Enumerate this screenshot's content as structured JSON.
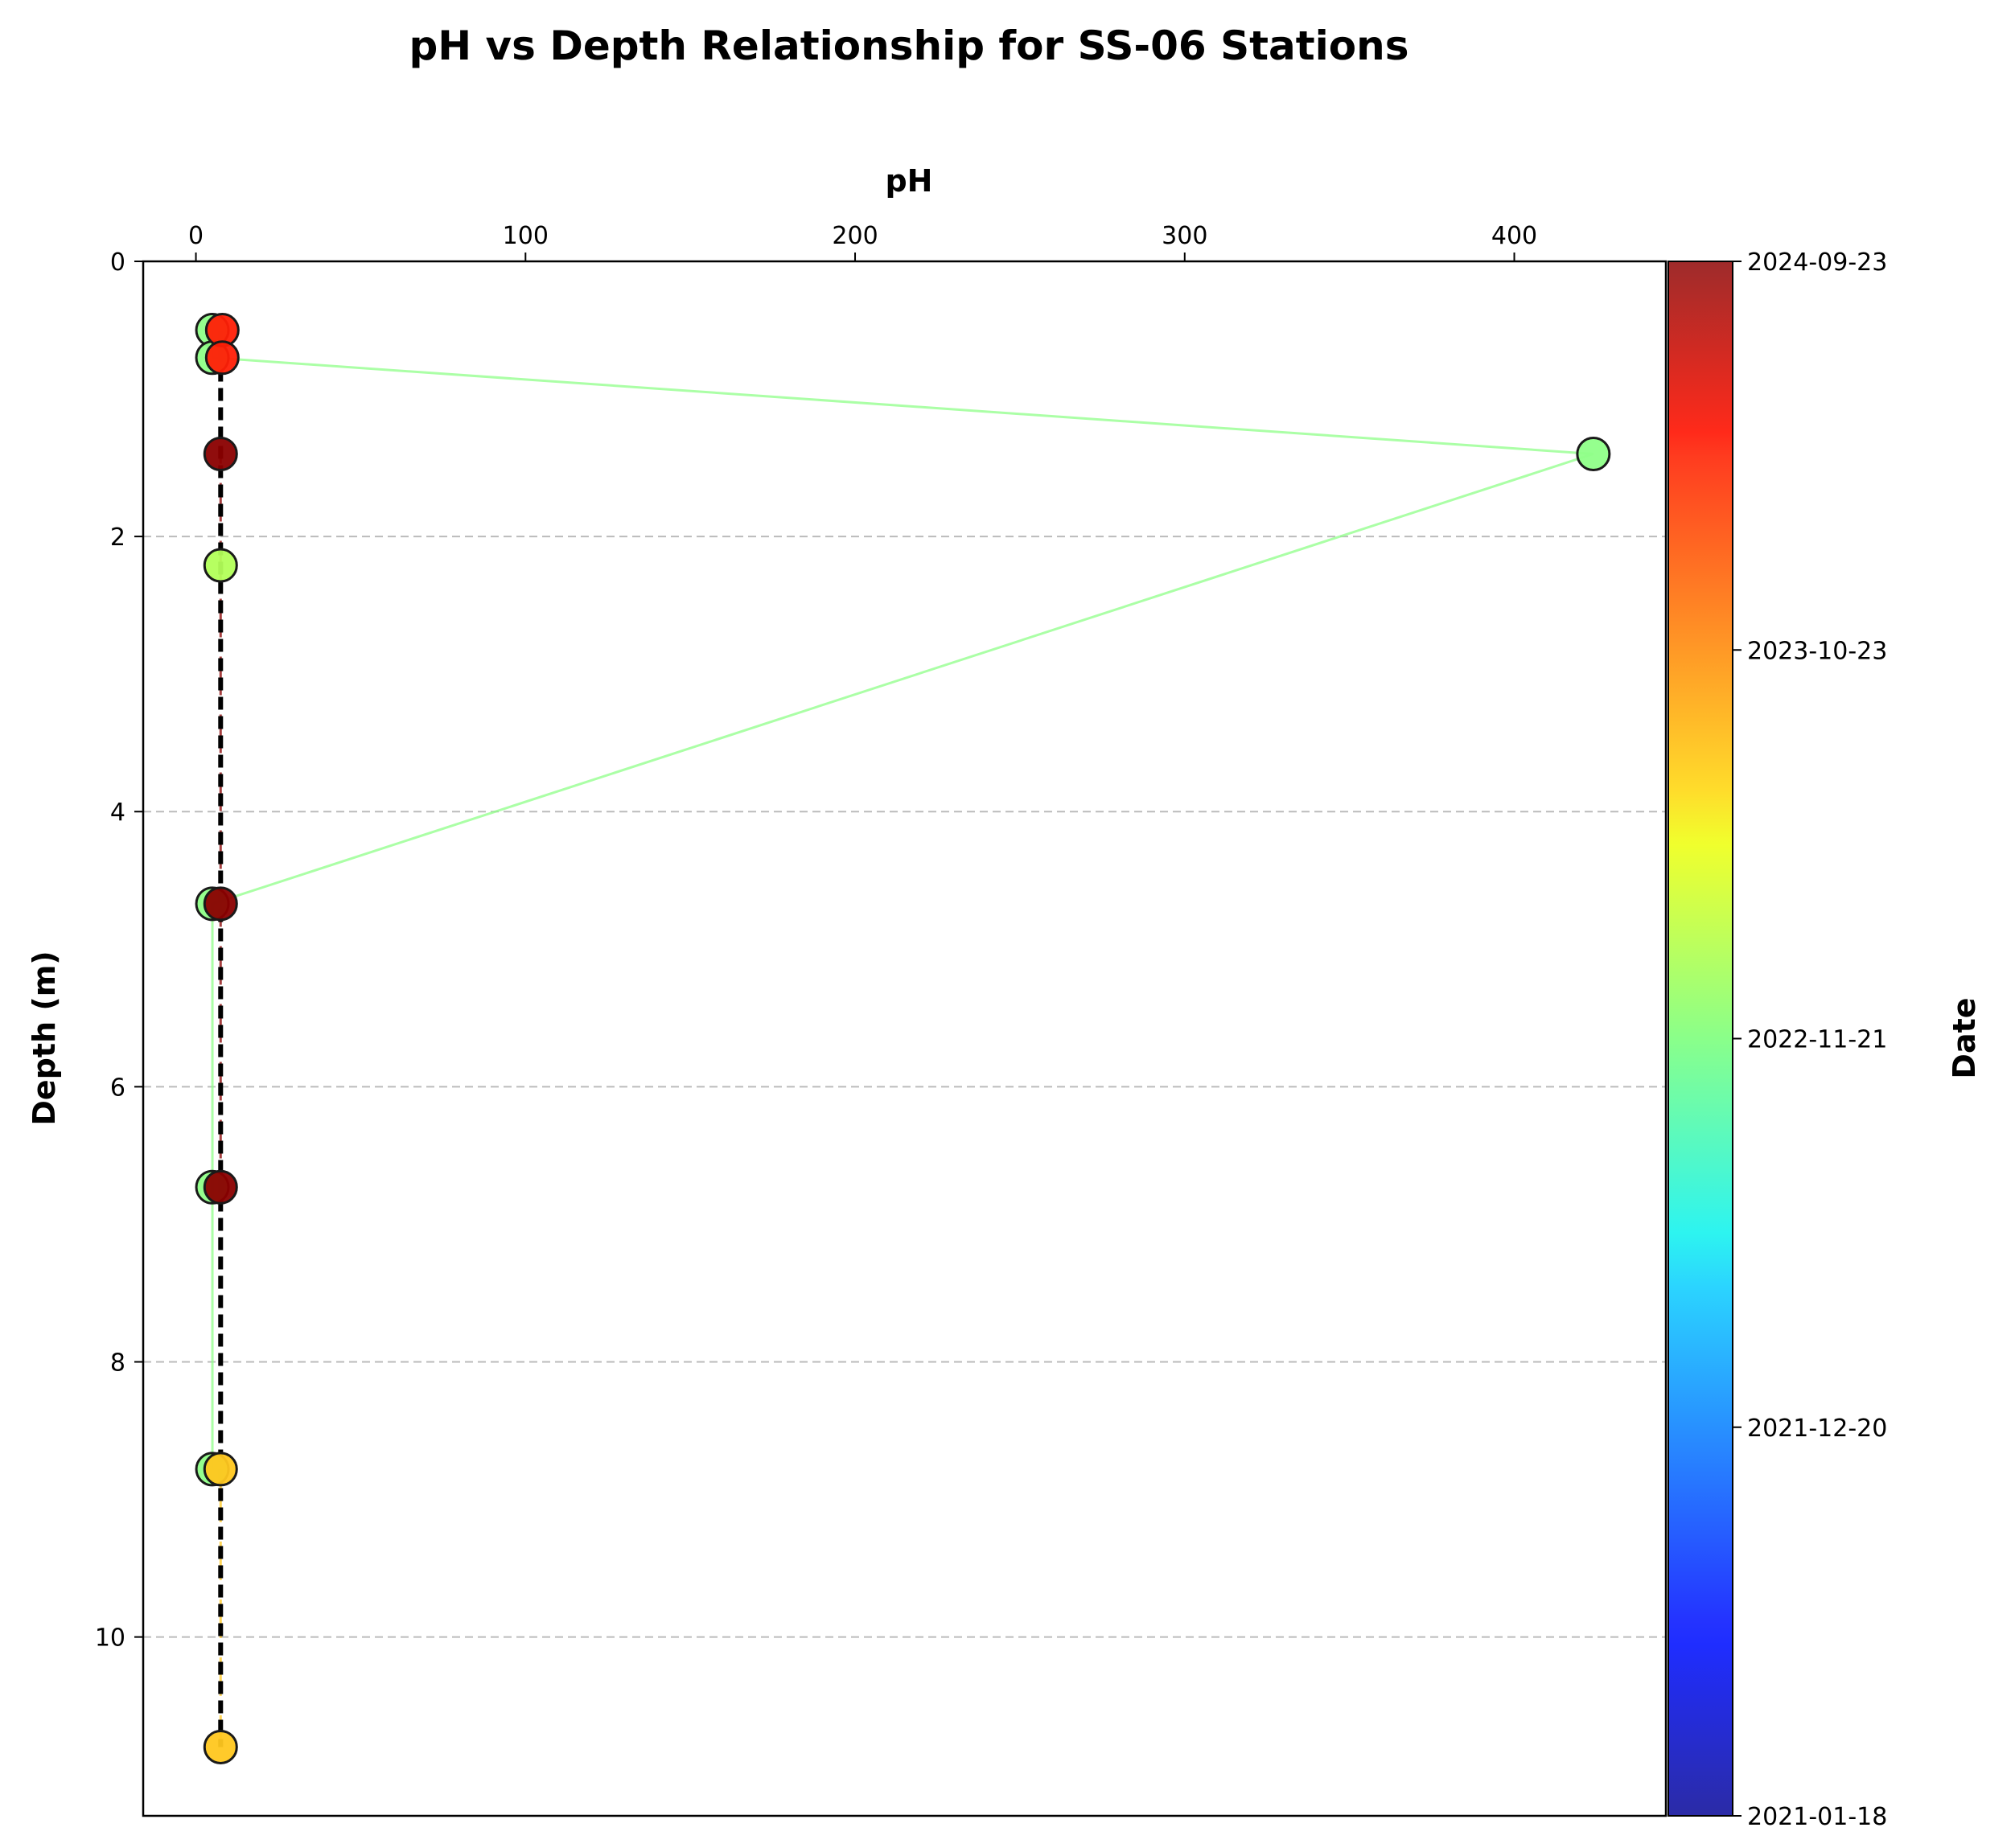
{
  "chart_data": {
    "type": "scatter",
    "title": "pH vs Depth Relationship for SS-06 Stations",
    "xlabel": "pH",
    "ylabel": "Depth (m)",
    "xlim": [
      -16,
      446
    ],
    "ylim": [
      11.3,
      0
    ],
    "y_inverted": true,
    "x_axis_position": "top",
    "x_ticks": [
      0,
      100,
      200,
      300,
      400
    ],
    "y_ticks": [
      0,
      2,
      4,
      6,
      8,
      10
    ],
    "grid": "horizontal dashed",
    "colorbar": {
      "label": "Date",
      "colormap": "jet",
      "ticks": [
        "2021-01-18",
        "2021-12-20",
        "2022-11-21",
        "2023-10-23",
        "2024-09-23"
      ],
      "tick_fractions": [
        0,
        0.25,
        0.5,
        0.75,
        1.0
      ]
    },
    "series": [
      {
        "date": "2023-01-02",
        "color": "#8fff88",
        "line": "solid",
        "points": [
          {
            "x": 5.0,
            "y": 0.5
          },
          {
            "x": 5.0,
            "y": 0.7
          },
          {
            "x": 424.0,
            "y": 1.4
          },
          {
            "x": 5.0,
            "y": 4.67
          },
          {
            "x": 5.0,
            "y": 6.73
          },
          {
            "x": 5.0,
            "y": 8.78
          }
        ]
      },
      {
        "date": "2022-12-20",
        "color": "#b2ff58",
        "line": "none",
        "points": [
          {
            "x": 7.5,
            "y": 2.21
          }
        ]
      },
      {
        "date": "2023-12-15",
        "color": "#ffc71f",
        "line": "dashed",
        "points": [
          {
            "x": 7.5,
            "y": 8.78
          },
          {
            "x": 7.5,
            "y": 10.8
          }
        ]
      },
      {
        "date": "2024-05-20",
        "color": "#ff1f06",
        "line": "dashed",
        "points": [
          {
            "x": 8.0,
            "y": 0.5
          },
          {
            "x": 8.0,
            "y": 0.7
          }
        ]
      },
      {
        "date": "2024-09-23",
        "color": "#8a0000",
        "line": "dashed",
        "points": [
          {
            "x": 7.5,
            "y": 1.4
          },
          {
            "x": 7.5,
            "y": 4.67
          },
          {
            "x": 7.5,
            "y": 6.73
          }
        ]
      }
    ],
    "trend_line": {
      "style": "dashed",
      "color": "#000000",
      "points": [
        {
          "x": 7.5,
          "y": 0.5
        },
        {
          "x": 7.5,
          "y": 10.8
        }
      ]
    }
  }
}
